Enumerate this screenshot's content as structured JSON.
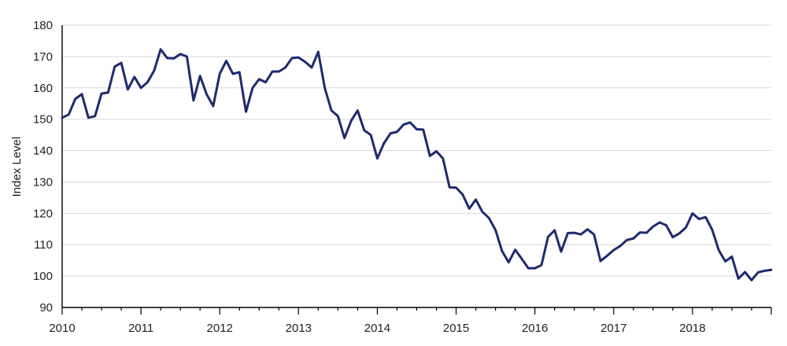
{
  "chart_data": {
    "type": "line",
    "ylabel": "Index Level",
    "xlabel": "",
    "ylim": [
      90,
      180
    ],
    "xlim": [
      2010,
      2019
    ],
    "yticks": [
      90,
      100,
      110,
      120,
      130,
      140,
      150,
      160,
      170,
      180
    ],
    "xticks": [
      2010,
      2011,
      2012,
      2013,
      2014,
      2015,
      2016,
      2017,
      2018
    ],
    "grid": "horizontal",
    "line_color": "#1f2a6e",
    "series": [
      {
        "x": [
          2010.0,
          2010.083,
          2010.167,
          2010.25,
          2010.333,
          2010.417,
          2010.5,
          2010.583,
          2010.667,
          2010.75,
          2010.833,
          2010.917,
          2011.0,
          2011.083,
          2011.167,
          2011.25,
          2011.333,
          2011.417,
          2011.5,
          2011.583,
          2011.667,
          2011.75,
          2011.833,
          2011.917,
          2012.0,
          2012.083,
          2012.167,
          2012.25,
          2012.333,
          2012.417,
          2012.5,
          2012.583,
          2012.667,
          2012.75,
          2012.833,
          2012.917,
          2013.0,
          2013.083,
          2013.167,
          2013.25,
          2013.333,
          2013.417,
          2013.5,
          2013.583,
          2013.667,
          2013.75,
          2013.833,
          2013.917,
          2014.0,
          2014.083,
          2014.167,
          2014.25,
          2014.333,
          2014.417,
          2014.5,
          2014.583,
          2014.667,
          2014.75,
          2014.833,
          2014.917,
          2015.0,
          2015.083,
          2015.167,
          2015.25,
          2015.333,
          2015.417,
          2015.5,
          2015.583,
          2015.667,
          2015.75,
          2015.833,
          2015.917,
          2016.0,
          2016.083,
          2016.167,
          2016.25,
          2016.333,
          2016.417,
          2016.5,
          2016.583,
          2016.667,
          2016.75,
          2016.833,
          2016.917,
          2017.0,
          2017.083,
          2017.167,
          2017.25,
          2017.333,
          2017.417,
          2017.5,
          2017.583,
          2017.667,
          2017.75,
          2017.833,
          2017.917,
          2018.0,
          2018.083,
          2018.167,
          2018.25,
          2018.333,
          2018.417,
          2018.5,
          2018.583,
          2018.667,
          2018.75,
          2018.833,
          2018.917,
          2019.0
        ],
        "values": [
          150.5,
          151.5,
          156.5,
          158,
          150.5,
          151,
          158.2,
          158.5,
          166.8,
          168,
          159.5,
          163.5,
          160,
          161.8,
          165.5,
          172.3,
          169.5,
          169.4,
          170.8,
          170,
          156,
          163.8,
          158,
          154.2,
          164.5,
          168.6,
          164.5,
          165,
          152.4,
          160,
          162.8,
          161.8,
          165.2,
          165.2,
          166.5,
          169.5,
          169.7,
          168.3,
          166.5,
          171.5,
          160,
          152.8,
          151,
          144,
          149.5,
          152.8,
          146.5,
          145,
          137.5,
          142.3,
          145.5,
          146,
          148.3,
          149,
          146.8,
          146.7,
          138.3,
          139.8,
          137.5,
          128.3,
          128.2,
          126,
          121.5,
          124.4,
          120.5,
          118.5,
          114.7,
          108,
          104.4,
          108.4,
          105.5,
          102.5,
          102.5,
          103.5,
          112.5,
          114.6,
          107.8,
          113.7,
          113.8,
          113.3,
          114.9,
          113.3,
          104.8,
          106.5,
          108.3,
          109.6,
          111.5,
          112,
          113.9,
          113.8,
          115.8,
          117.1,
          116.2,
          112.4,
          113.6,
          115.5,
          120,
          118.2,
          118.8,
          114.8,
          108.3,
          104.7,
          106.2,
          99.2,
          101.3,
          98.7,
          101.2,
          101.7,
          102
        ]
      }
    ]
  }
}
